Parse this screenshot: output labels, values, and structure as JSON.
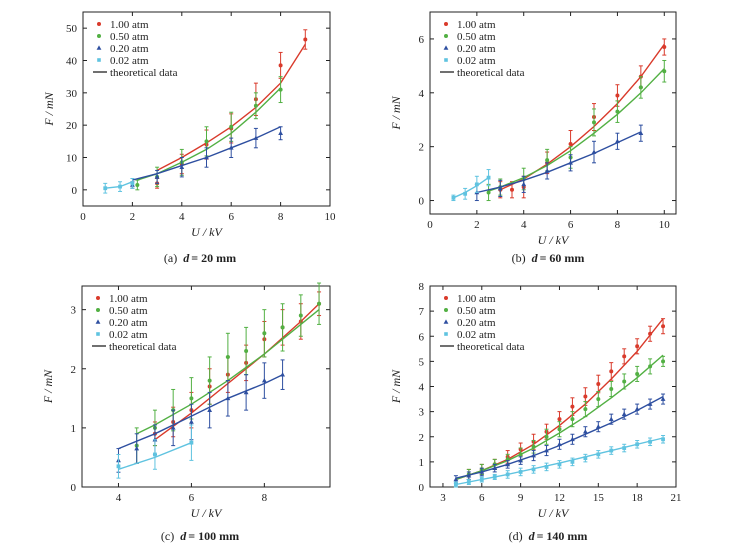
{
  "theoretical_label": "theoretical data",
  "colors": {
    "1.00 atm": "#d93a2b",
    "0.50 atm": "#52b043",
    "0.20 atm": "#2e4fa0",
    "0.02 atm": "#5fc3e0",
    "theory": "#222222"
  },
  "chart_data": [
    {
      "type": "scatter",
      "caption": "(a) d = 20 mm",
      "caption_parts": [
        "(a)",
        "d",
        "= 20 mm"
      ],
      "xlabel": "U / kV",
      "ylabel": "F / mN",
      "xlim": [
        0,
        10
      ],
      "ylim": [
        -5,
        55
      ],
      "xticks": [
        0,
        2,
        4,
        6,
        8,
        10
      ],
      "yticks": [
        0,
        10,
        20,
        30,
        40,
        50
      ],
      "legend_position": "top-left",
      "series": [
        {
          "name": "1.00 atm",
          "marker": "circle",
          "x": [
            3,
            4,
            5,
            6,
            7,
            8,
            9
          ],
          "y": [
            2,
            8,
            14,
            19,
            28,
            38.5,
            46.5
          ],
          "err": [
            1.5,
            3,
            4.5,
            4.5,
            5,
            4,
            3
          ],
          "theory_x": [
            3,
            4,
            5,
            6,
            7,
            8,
            9
          ],
          "theory_y": [
            6,
            10,
            14.5,
            19.5,
            25.5,
            33,
            45
          ]
        },
        {
          "name": "0.50 atm",
          "marker": "circle",
          "x": [
            2.2,
            3,
            4,
            5,
            6,
            7,
            8
          ],
          "y": [
            1.5,
            4,
            8.5,
            15,
            19.5,
            26,
            31
          ],
          "err": [
            1.5,
            3,
            4,
            4.5,
            4.5,
            4,
            4
          ],
          "theory_x": [
            2.2,
            3,
            4,
            5,
            6,
            7,
            8
          ],
          "theory_y": [
            3,
            5,
            8.5,
            12.5,
            17.5,
            24,
            31.5
          ]
        },
        {
          "name": "0.20 atm",
          "marker": "triangle",
          "x": [
            2,
            3,
            4,
            5,
            6,
            7,
            8
          ],
          "y": [
            1.5,
            4,
            7,
            10,
            13,
            16,
            17.5
          ],
          "err": [
            1,
            2,
            3,
            3,
            3,
            3,
            2
          ],
          "theory_x": [
            2,
            3,
            4,
            5,
            6,
            7,
            8
          ],
          "theory_y": [
            3,
            5,
            7.5,
            10,
            13,
            16,
            19.5
          ]
        },
        {
          "name": "0.02 atm",
          "marker": "square",
          "x": [
            0.9,
            1.5,
            2
          ],
          "y": [
            0.5,
            1,
            2
          ],
          "err": [
            1.5,
            1.5,
            1.5
          ],
          "theory_x": [
            0.9,
            1.5,
            2
          ],
          "theory_y": [
            0.5,
            1,
            2.5
          ]
        }
      ]
    },
    {
      "type": "scatter",
      "caption": "(b) d = 60 mm",
      "caption_parts": [
        "(b)",
        "d",
        "= 60 mm"
      ],
      "xlabel": "U / kV",
      "ylabel": "F / mN",
      "xlim": [
        0,
        10.5
      ],
      "ylim": [
        -0.5,
        7
      ],
      "xticks": [
        0,
        2,
        4,
        6,
        8,
        10
      ],
      "yticks": [
        0,
        2,
        4,
        6
      ],
      "legend_position": "top-left",
      "series": [
        {
          "name": "1.00 atm",
          "marker": "circle",
          "x": [
            3,
            3.5,
            4,
            5,
            6,
            7,
            8,
            9,
            10
          ],
          "y": [
            0.4,
            0.4,
            0.5,
            1.4,
            2.1,
            3.1,
            3.9,
            4.6,
            5.7
          ],
          "err": [
            0.3,
            0.3,
            0.4,
            0.4,
            0.5,
            0.5,
            0.4,
            0.4,
            0.3
          ],
          "theory_x": [
            3,
            4,
            5,
            6,
            7,
            8,
            9,
            10
          ],
          "theory_y": [
            0.4,
            0.8,
            1.35,
            2,
            2.75,
            3.6,
            4.6,
            5.8
          ]
        },
        {
          "name": "0.50 atm",
          "marker": "circle",
          "x": [
            2.5,
            3,
            4,
            5,
            6,
            7,
            8,
            9,
            10
          ],
          "y": [
            0.3,
            0.5,
            0.8,
            1.5,
            1.6,
            2.9,
            3.3,
            4.2,
            4.8
          ],
          "err": [
            0.3,
            0.3,
            0.4,
            0.4,
            0.4,
            0.5,
            0.4,
            0.4,
            0.4
          ],
          "theory_x": [
            2.5,
            3,
            4,
            5,
            6,
            7,
            8,
            9,
            10
          ],
          "theory_y": [
            0.35,
            0.5,
            0.85,
            1.3,
            1.85,
            2.5,
            3.2,
            4,
            4.9
          ]
        },
        {
          "name": "0.20 atm",
          "marker": "triangle",
          "x": [
            2,
            3,
            4,
            5,
            6,
            7,
            8,
            9
          ],
          "y": [
            0.3,
            0.45,
            0.6,
            1.1,
            1.4,
            1.8,
            2.2,
            2.5
          ],
          "err": [
            0.3,
            0.3,
            0.3,
            0.3,
            0.3,
            0.4,
            0.3,
            0.3
          ],
          "theory_x": [
            2,
            3,
            4,
            5,
            6,
            7,
            8,
            9
          ],
          "theory_y": [
            0.3,
            0.5,
            0.75,
            1.05,
            1.4,
            1.75,
            2.15,
            2.55
          ]
        },
        {
          "name": "0.02 atm",
          "marker": "square",
          "x": [
            1,
            1.5,
            2,
            2.5
          ],
          "y": [
            0.1,
            0.25,
            0.6,
            0.85
          ],
          "err": [
            0.1,
            0.2,
            0.3,
            0.3
          ],
          "theory_x": [
            1,
            1.5,
            2,
            2.5
          ],
          "theory_y": [
            0.1,
            0.3,
            0.55,
            0.85
          ]
        }
      ]
    },
    {
      "type": "scatter",
      "caption": "(c) d = 100 mm",
      "caption_parts": [
        "(c)",
        "d",
        "= 100 mm"
      ],
      "xlabel": "U / kV",
      "ylabel": "F / mN",
      "xlim": [
        3,
        9.8
      ],
      "ylim": [
        0,
        3.4
      ],
      "xticks": [
        4,
        6,
        8
      ],
      "yticks": [
        0,
        1,
        2,
        3
      ],
      "legend_position": "top-left",
      "series": [
        {
          "name": "1.00 atm",
          "marker": "circle",
          "x": [
            5,
            5.5,
            6,
            6.5,
            7,
            7.5,
            8,
            8.5,
            9,
            9.5
          ],
          "y": [
            0.9,
            1.1,
            1.3,
            1.7,
            1.9,
            2.1,
            2.5,
            2.7,
            2.8,
            3.1
          ],
          "err": [
            0.2,
            0.25,
            0.3,
            0.3,
            0.3,
            0.3,
            0.3,
            0.3,
            0.3,
            0.2
          ],
          "theory_x": [
            5,
            6,
            7,
            8,
            9,
            9.5
          ],
          "theory_y": [
            0.8,
            1.25,
            1.75,
            2.25,
            2.8,
            3.1
          ]
        },
        {
          "name": "0.50 atm",
          "marker": "circle",
          "x": [
            4.5,
            5,
            5.5,
            6,
            6.5,
            7,
            7.5,
            8,
            8.5,
            9,
            9.5
          ],
          "y": [
            0.7,
            1.0,
            1.3,
            1.5,
            1.8,
            2.2,
            2.3,
            2.6,
            2.7,
            2.9,
            3.1
          ],
          "err": [
            0.3,
            0.3,
            0.35,
            0.35,
            0.4,
            0.4,
            0.4,
            0.4,
            0.4,
            0.35,
            0.35
          ],
          "theory_x": [
            4.5,
            5,
            6,
            7,
            8,
            9,
            9.5
          ],
          "theory_y": [
            0.9,
            1.05,
            1.4,
            1.8,
            2.25,
            2.75,
            3.0
          ]
        },
        {
          "name": "0.20 atm",
          "marker": "triangle",
          "x": [
            4,
            4.5,
            5,
            5.5,
            6,
            6.5,
            7,
            7.5,
            8,
            8.5
          ],
          "y": [
            0.45,
            0.65,
            0.8,
            1.0,
            1.1,
            1.3,
            1.5,
            1.6,
            1.8,
            1.9
          ],
          "err": [
            0.2,
            0.25,
            0.25,
            0.3,
            0.3,
            0.3,
            0.3,
            0.3,
            0.3,
            0.25
          ],
          "theory_x": [
            4,
            5,
            6,
            7,
            8,
            8.5
          ],
          "theory_y": [
            0.65,
            0.9,
            1.2,
            1.5,
            1.75,
            1.9
          ]
        },
        {
          "name": "0.02 atm",
          "marker": "square",
          "x": [
            4,
            5,
            6
          ],
          "y": [
            0.35,
            0.55,
            0.75
          ],
          "err": [
            0.2,
            0.25,
            0.3
          ],
          "theory_x": [
            4,
            5,
            6
          ],
          "theory_y": [
            0.3,
            0.5,
            0.75
          ]
        }
      ]
    },
    {
      "type": "scatter",
      "caption": "(d) d = 140 mm",
      "caption_parts": [
        "(d)",
        "d",
        "= 140 mm"
      ],
      "xlabel": "U / kV",
      "ylabel": "F / mN",
      "xlim": [
        2,
        21
      ],
      "ylim": [
        0,
        8
      ],
      "xticks": [
        3,
        6,
        9,
        12,
        15,
        18,
        21
      ],
      "yticks": [
        0,
        1,
        2,
        3,
        4,
        5,
        6,
        7,
        8
      ],
      "legend_position": "top-left",
      "series": [
        {
          "name": "1.00 atm",
          "marker": "circle",
          "x": [
            5,
            6,
            7,
            8,
            9,
            10,
            11,
            12,
            13,
            14,
            15,
            16,
            17,
            18,
            19,
            20
          ],
          "y": [
            0.5,
            0.7,
            0.9,
            1.2,
            1.5,
            1.8,
            2.2,
            2.7,
            3.2,
            3.6,
            4.1,
            4.6,
            5.2,
            5.6,
            6.1,
            6.4
          ],
          "err": [
            0.2,
            0.2,
            0.2,
            0.25,
            0.25,
            0.3,
            0.3,
            0.3,
            0.35,
            0.35,
            0.35,
            0.35,
            0.3,
            0.3,
            0.3,
            0.3
          ],
          "theory_x": [
            4,
            6,
            8,
            10,
            12,
            14,
            16,
            18,
            20
          ],
          "theory_y": [
            0.3,
            0.65,
            1.1,
            1.7,
            2.45,
            3.3,
            4.3,
            5.4,
            6.7
          ]
        },
        {
          "name": "0.50 atm",
          "marker": "circle",
          "x": [
            5,
            6,
            7,
            8,
            9,
            10,
            11,
            12,
            13,
            14,
            15,
            16,
            17,
            18,
            19,
            20
          ],
          "y": [
            0.5,
            0.7,
            0.9,
            1.1,
            1.3,
            1.6,
            2.0,
            2.3,
            2.7,
            3.1,
            3.5,
            3.9,
            4.2,
            4.5,
            4.8,
            5.0
          ],
          "err": [
            0.2,
            0.2,
            0.2,
            0.2,
            0.25,
            0.25,
            0.3,
            0.3,
            0.3,
            0.3,
            0.3,
            0.3,
            0.3,
            0.3,
            0.3,
            0.2
          ],
          "theory_x": [
            4,
            6,
            8,
            10,
            12,
            14,
            16,
            18,
            20
          ],
          "theory_y": [
            0.3,
            0.65,
            1.05,
            1.55,
            2.15,
            2.8,
            3.55,
            4.35,
            5.25
          ]
        },
        {
          "name": "0.20 atm",
          "marker": "triangle",
          "x": [
            4,
            5,
            6,
            7,
            8,
            9,
            10,
            11,
            12,
            13,
            14,
            15,
            16,
            17,
            18,
            19,
            20
          ],
          "y": [
            0.3,
            0.45,
            0.6,
            0.75,
            0.9,
            1.05,
            1.25,
            1.45,
            1.7,
            1.9,
            2.2,
            2.4,
            2.7,
            2.9,
            3.1,
            3.3,
            3.5
          ],
          "err": [
            0.15,
            0.15,
            0.15,
            0.15,
            0.15,
            0.15,
            0.2,
            0.2,
            0.2,
            0.2,
            0.2,
            0.2,
            0.2,
            0.2,
            0.2,
            0.2,
            0.2
          ],
          "theory_x": [
            4,
            6,
            8,
            10,
            12,
            14,
            16,
            18,
            20
          ],
          "theory_y": [
            0.35,
            0.6,
            0.9,
            1.25,
            1.65,
            2.1,
            2.55,
            3.05,
            3.6
          ]
        },
        {
          "name": "0.02 atm",
          "marker": "square",
          "x": [
            4,
            5,
            6,
            7,
            8,
            9,
            10,
            11,
            12,
            13,
            14,
            15,
            16,
            17,
            18,
            19,
            20
          ],
          "y": [
            0.1,
            0.2,
            0.3,
            0.4,
            0.5,
            0.6,
            0.7,
            0.8,
            0.9,
            1.0,
            1.15,
            1.3,
            1.45,
            1.55,
            1.7,
            1.8,
            1.9
          ],
          "err": [
            0.1,
            0.1,
            0.1,
            0.1,
            0.15,
            0.15,
            0.15,
            0.15,
            0.15,
            0.15,
            0.15,
            0.15,
            0.15,
            0.15,
            0.15,
            0.15,
            0.15
          ],
          "theory_x": [
            4,
            8,
            12,
            16,
            20
          ],
          "theory_y": [
            0.1,
            0.5,
            0.95,
            1.45,
            1.95
          ]
        }
      ]
    }
  ]
}
